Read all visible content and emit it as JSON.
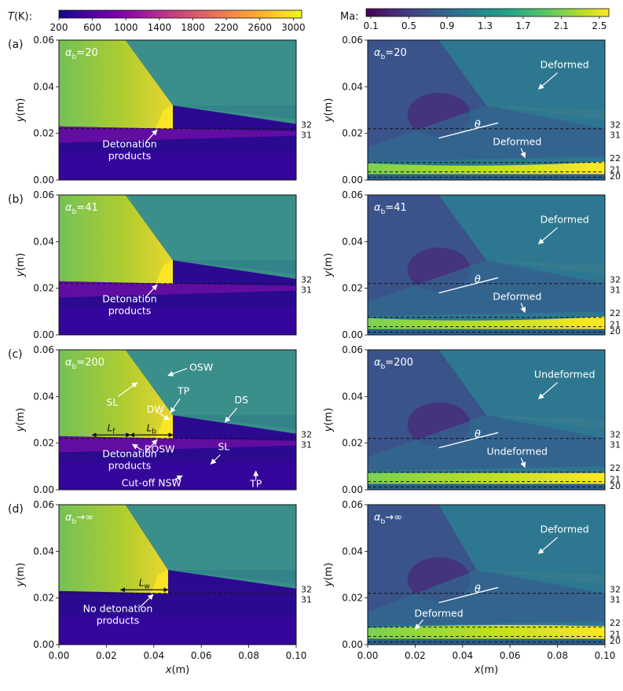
{
  "colorbars": {
    "temperature": {
      "label_prefix": "T",
      "label_suffix": "(K):",
      "ticks": [
        "200",
        "600",
        "1000",
        "1400",
        "1800",
        "2200",
        "2600",
        "3000"
      ],
      "range": [
        200,
        3100
      ]
    },
    "mach": {
      "label": "Ma:",
      "ticks": [
        "0.1",
        "0.5",
        "0.9",
        "1.3",
        "1.7",
        "2.1",
        "2.5"
      ],
      "range": [
        0.05,
        2.6
      ]
    }
  },
  "chart_data": {
    "type": "heatmap",
    "shared_axes": {
      "xlabel_var": "x",
      "xlabel_unit": "(m)",
      "ylabel_var": "y",
      "ylabel_unit": "(m)",
      "xlim": [
        0.0,
        0.1
      ],
      "ylim": [
        0.0,
        0.06
      ],
      "xticks": [
        "0.00",
        "0.02",
        "0.04",
        "0.06",
        "0.08",
        "0.10"
      ],
      "yticks": [
        "0.00",
        "0.02",
        "0.04",
        "0.06"
      ]
    },
    "dashed_line_labels": {
      "temperature": [
        "32",
        "31"
      ],
      "mach": [
        "32",
        "31",
        "22",
        "21",
        "20"
      ]
    },
    "rows": [
      {
        "panel": "(a)",
        "case": "20",
        "temperature_annotations": [
          "Detonation products"
        ],
        "mach_annotations": [
          "Deformed",
          "θ",
          "Deformed"
        ]
      },
      {
        "panel": "(b)",
        "case": "41",
        "temperature_annotations": [
          "Detonation products"
        ],
        "mach_annotations": [
          "Deformed",
          "θ",
          "Deformed"
        ]
      },
      {
        "panel": "(c)",
        "case": "200",
        "temperature_annotations": [
          "OSW",
          "SL",
          "TP",
          "DW",
          "DS",
          "Detonation products",
          "ROSW",
          "SL",
          "Cut-off NSW",
          "TP"
        ],
        "temperature_lengths": [
          "L_f",
          "L_b"
        ],
        "mach_annotations": [
          "Undeformed",
          "θ",
          "Undeformed"
        ]
      },
      {
        "panel": "(d)",
        "case": "→∞",
        "temperature_annotations": [
          "No detonation products"
        ],
        "temperature_lengths": [
          "L_w"
        ],
        "mach_annotations": [
          "Deformed",
          "θ",
          "Deformed"
        ]
      }
    ]
  },
  "text": {
    "alpha_sym": "α",
    "alpha_sub": "b",
    "eq": "=",
    "products_line1": "Detonation",
    "products_line2": "products",
    "no_products_line1": "No detonation",
    "no_products_line2": "products",
    "deformed": "Deformed",
    "undeformed": "Undeformed",
    "theta": "θ",
    "osw": "OSW",
    "sl": "SL",
    "tp": "TP",
    "dw": "DW",
    "ds": "DS",
    "rosw": "ROSW",
    "cutoff": "Cut-off NSW",
    "L": "L",
    "sub_f": "f",
    "sub_b": "b",
    "sub_w": "w"
  },
  "colors": {
    "viridis": [
      "#440154",
      "#482475",
      "#414487",
      "#355f8d",
      "#2a788e",
      "#21918c",
      "#22a884",
      "#44bf70",
      "#7ad151",
      "#bddf26",
      "#fde725"
    ],
    "plasma": [
      "#0d0887",
      "#41049d",
      "#6a00a8",
      "#8f0da4",
      "#b12a90",
      "#cc4778",
      "#e16462",
      "#f2844b",
      "#fca636",
      "#fcce25",
      "#f0f921"
    ]
  }
}
